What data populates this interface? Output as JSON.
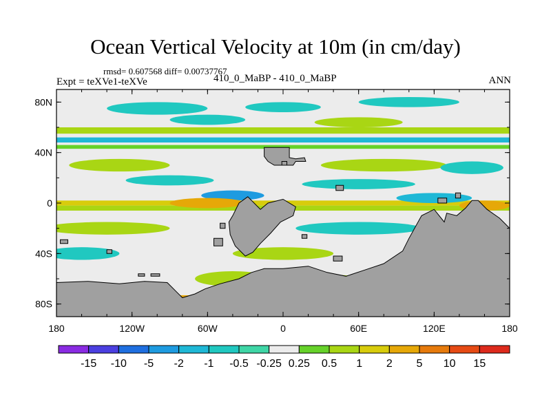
{
  "chart_data": {
    "type": "heatmap",
    "title": "Ocean Vertical Velocity at 10m (in cm/day)",
    "stats": "rmsd= 0.607568 diff= 0.00737767",
    "experiment": "Expt = teXVe1-teXVe",
    "case": "410_0_MaBP - 410_0_MaBP",
    "season": "ANN",
    "xlabel": "",
    "ylabel": "",
    "xlim": [
      -180,
      180
    ],
    "ylim": [
      -90,
      90
    ],
    "x_ticks": [
      {
        "value": -180,
        "label": "180"
      },
      {
        "value": -120,
        "label": "120W"
      },
      {
        "value": -60,
        "label": "60W"
      },
      {
        "value": 0,
        "label": "0"
      },
      {
        "value": 60,
        "label": "60E"
      },
      {
        "value": 120,
        "label": "120E"
      },
      {
        "value": 180,
        "label": "180"
      }
    ],
    "y_ticks": [
      {
        "value": 80,
        "label": "80N"
      },
      {
        "value": 40,
        "label": "40N"
      },
      {
        "value": 0,
        "label": "0"
      },
      {
        "value": -40,
        "label": "40S"
      },
      {
        "value": -80,
        "label": "80S"
      }
    ],
    "colorbar": {
      "labels": [
        "-15",
        "-10",
        "-5",
        "-2",
        "-1",
        "-0.5",
        "-0.25",
        "0.25",
        "0.5",
        "1",
        "2",
        "5",
        "10",
        "15"
      ],
      "colors": [
        "#8a2be2",
        "#4b3fe0",
        "#1f6fe0",
        "#1e9be0",
        "#1fb8d6",
        "#20c8c0",
        "#3fd6a6",
        "#ececec",
        "#66d22a",
        "#a9d614",
        "#d8cc0c",
        "#e6a808",
        "#e67a0c",
        "#e64a14",
        "#dd2a1c"
      ]
    },
    "bands": [
      {
        "lat_from": 55,
        "lat_to": 60,
        "value": 0.75
      },
      {
        "lat_from": 48,
        "lat_to": 52,
        "value": -1.5
      },
      {
        "lat_from": 43,
        "lat_to": 46,
        "value": 0.4
      },
      {
        "lat_from": -2,
        "lat_to": 2,
        "value": 1.5
      },
      {
        "lat_from": -6,
        "lat_to": -2,
        "value": 0.6
      }
    ],
    "patches": [
      {
        "lon": -100,
        "lat": 75,
        "dlon": 40,
        "dlat": 5,
        "value": -0.75
      },
      {
        "lon": 0,
        "lat": 76,
        "dlon": 30,
        "dlat": 4,
        "value": -0.75
      },
      {
        "lon": 100,
        "lat": 80,
        "dlon": 40,
        "dlat": 4,
        "value": -0.75
      },
      {
        "lon": -60,
        "lat": 66,
        "dlon": 30,
        "dlat": 4,
        "value": -0.75
      },
      {
        "lon": 60,
        "lat": 64,
        "dlon": 35,
        "dlat": 4,
        "value": 0.6
      },
      {
        "lon": -130,
        "lat": 30,
        "dlon": 40,
        "dlat": 5,
        "value": 0.6
      },
      {
        "lon": 80,
        "lat": 30,
        "dlon": 50,
        "dlat": 5,
        "value": 0.6
      },
      {
        "lon": 150,
        "lat": 28,
        "dlon": 25,
        "dlat": 5,
        "value": -0.75
      },
      {
        "lon": -90,
        "lat": 18,
        "dlon": 35,
        "dlat": 4,
        "value": -0.75
      },
      {
        "lon": 60,
        "lat": 15,
        "dlon": 45,
        "dlat": 4,
        "value": -0.75
      },
      {
        "lon": -40,
        "lat": 6,
        "dlon": 25,
        "dlat": 4,
        "value": -5
      },
      {
        "lon": -60,
        "lat": 0,
        "dlon": 30,
        "dlat": 4,
        "value": 3
      },
      {
        "lon": 120,
        "lat": 4,
        "dlon": 30,
        "dlat": 4,
        "value": -2
      },
      {
        "lon": 160,
        "lat": -2,
        "dlon": 20,
        "dlat": 4,
        "value": 3
      },
      {
        "lon": -140,
        "lat": -20,
        "dlon": 50,
        "dlat": 5,
        "value": 0.6
      },
      {
        "lon": 60,
        "lat": -20,
        "dlon": 50,
        "dlat": 5,
        "value": -0.75
      },
      {
        "lon": -160,
        "lat": -40,
        "dlon": 30,
        "dlat": 5,
        "value": -0.75
      },
      {
        "lon": 0,
        "lat": -40,
        "dlon": 40,
        "dlat": 5,
        "value": 0.6
      },
      {
        "lon": -40,
        "lat": -60,
        "dlon": 30,
        "dlat": 6,
        "value": 0.75
      },
      {
        "lon": 40,
        "lat": -62,
        "dlon": 30,
        "dlat": 5,
        "value": 0.6
      },
      {
        "lon": -80,
        "lat": -78,
        "dlon": 25,
        "dlat": 5,
        "value": 3
      },
      {
        "lon": -30,
        "lat": -74,
        "dlon": 20,
        "dlat": 4,
        "value": 1.5
      }
    ],
    "land": [
      {
        "name": "North Atlantic landmass",
        "points": [
          [
            -15,
            44
          ],
          [
            5,
            44
          ],
          [
            5,
            36
          ],
          [
            10,
            35
          ],
          [
            17,
            36
          ],
          [
            18,
            33
          ],
          [
            10,
            33
          ],
          [
            8,
            30
          ],
          [
            -7,
            30
          ],
          [
            -12,
            33
          ],
          [
            -15,
            37
          ]
        ]
      },
      {
        "name": "Equatorial landmass",
        "points": [
          [
            -40,
            -10
          ],
          [
            -35,
            0
          ],
          [
            -28,
            5
          ],
          [
            -18,
            -5
          ],
          [
            -12,
            0
          ],
          [
            0,
            3
          ],
          [
            10,
            -3
          ],
          [
            8,
            -10
          ],
          [
            -2,
            -15
          ],
          [
            -10,
            -24
          ],
          [
            -18,
            -32
          ],
          [
            -24,
            -39
          ],
          [
            -30,
            -42
          ],
          [
            -38,
            -34
          ],
          [
            -42,
            -25
          ],
          [
            -43,
            -15
          ]
        ]
      },
      {
        "name": "Southern landmass",
        "points": [
          [
            -180,
            -63
          ],
          [
            -155,
            -62
          ],
          [
            -130,
            -64
          ],
          [
            -110,
            -62
          ],
          [
            -92,
            -63
          ],
          [
            -85,
            -70
          ],
          [
            -80,
            -75
          ],
          [
            -70,
            -72
          ],
          [
            -62,
            -68
          ],
          [
            -50,
            -64
          ],
          [
            -35,
            -60
          ],
          [
            -25,
            -55
          ],
          [
            -15,
            -52
          ],
          [
            0,
            -52
          ],
          [
            20,
            -50
          ],
          [
            35,
            -55
          ],
          [
            50,
            -58
          ],
          [
            65,
            -53
          ],
          [
            80,
            -48
          ],
          [
            95,
            -38
          ],
          [
            100,
            -28
          ],
          [
            110,
            -10
          ],
          [
            120,
            -5
          ],
          [
            128,
            -15
          ],
          [
            130,
            -8
          ],
          [
            138,
            -10
          ],
          [
            145,
            -4
          ],
          [
            150,
            2
          ],
          [
            155,
            2
          ],
          [
            162,
            -5
          ],
          [
            172,
            -12
          ],
          [
            178,
            -18
          ],
          [
            180,
            -20
          ],
          [
            180,
            -90
          ],
          [
            -180,
            -90
          ]
        ]
      },
      {
        "name": "Island A",
        "points": [
          [
            -50,
            -20
          ],
          [
            -46,
            -20
          ],
          [
            -46,
            -16
          ],
          [
            -50,
            -16
          ]
        ]
      },
      {
        "name": "Island B",
        "points": [
          [
            -55,
            -34
          ],
          [
            -48,
            -34
          ],
          [
            -48,
            -28
          ],
          [
            -55,
            -28
          ]
        ]
      },
      {
        "name": "Island C",
        "points": [
          [
            -177,
            -32
          ],
          [
            -171,
            -32
          ],
          [
            -171,
            -29
          ],
          [
            -177,
            -29
          ]
        ]
      },
      {
        "name": "Island D",
        "points": [
          [
            -140,
            -40
          ],
          [
            -136,
            -40
          ],
          [
            -136,
            -37
          ],
          [
            -140,
            -37
          ]
        ]
      },
      {
        "name": "Island E",
        "points": [
          [
            -115,
            -58
          ],
          [
            -110,
            -58
          ],
          [
            -110,
            -56
          ],
          [
            -115,
            -56
          ]
        ]
      },
      {
        "name": "Island F",
        "points": [
          [
            -105,
            -58
          ],
          [
            -98,
            -58
          ],
          [
            -98,
            -56
          ],
          [
            -105,
            -56
          ]
        ]
      },
      {
        "name": "Island G",
        "points": [
          [
            40,
            -46
          ],
          [
            47,
            -46
          ],
          [
            47,
            -42
          ],
          [
            40,
            -42
          ]
        ]
      },
      {
        "name": "Island H",
        "points": [
          [
            15,
            -28
          ],
          [
            19,
            -28
          ],
          [
            19,
            -25
          ],
          [
            15,
            -25
          ]
        ]
      },
      {
        "name": "Island I",
        "points": [
          [
            42,
            10
          ],
          [
            48,
            10
          ],
          [
            48,
            14
          ],
          [
            42,
            14
          ]
        ]
      },
      {
        "name": "Island J",
        "points": [
          [
            123,
            0
          ],
          [
            130,
            0
          ],
          [
            130,
            4
          ],
          [
            123,
            4
          ]
        ]
      },
      {
        "name": "Island K",
        "points": [
          [
            137,
            4
          ],
          [
            141,
            4
          ],
          [
            141,
            8
          ],
          [
            137,
            8
          ]
        ]
      },
      {
        "name": "Island L",
        "points": [
          [
            -1,
            30
          ],
          [
            3,
            30
          ],
          [
            3,
            33
          ],
          [
            -1,
            33
          ]
        ]
      }
    ]
  }
}
